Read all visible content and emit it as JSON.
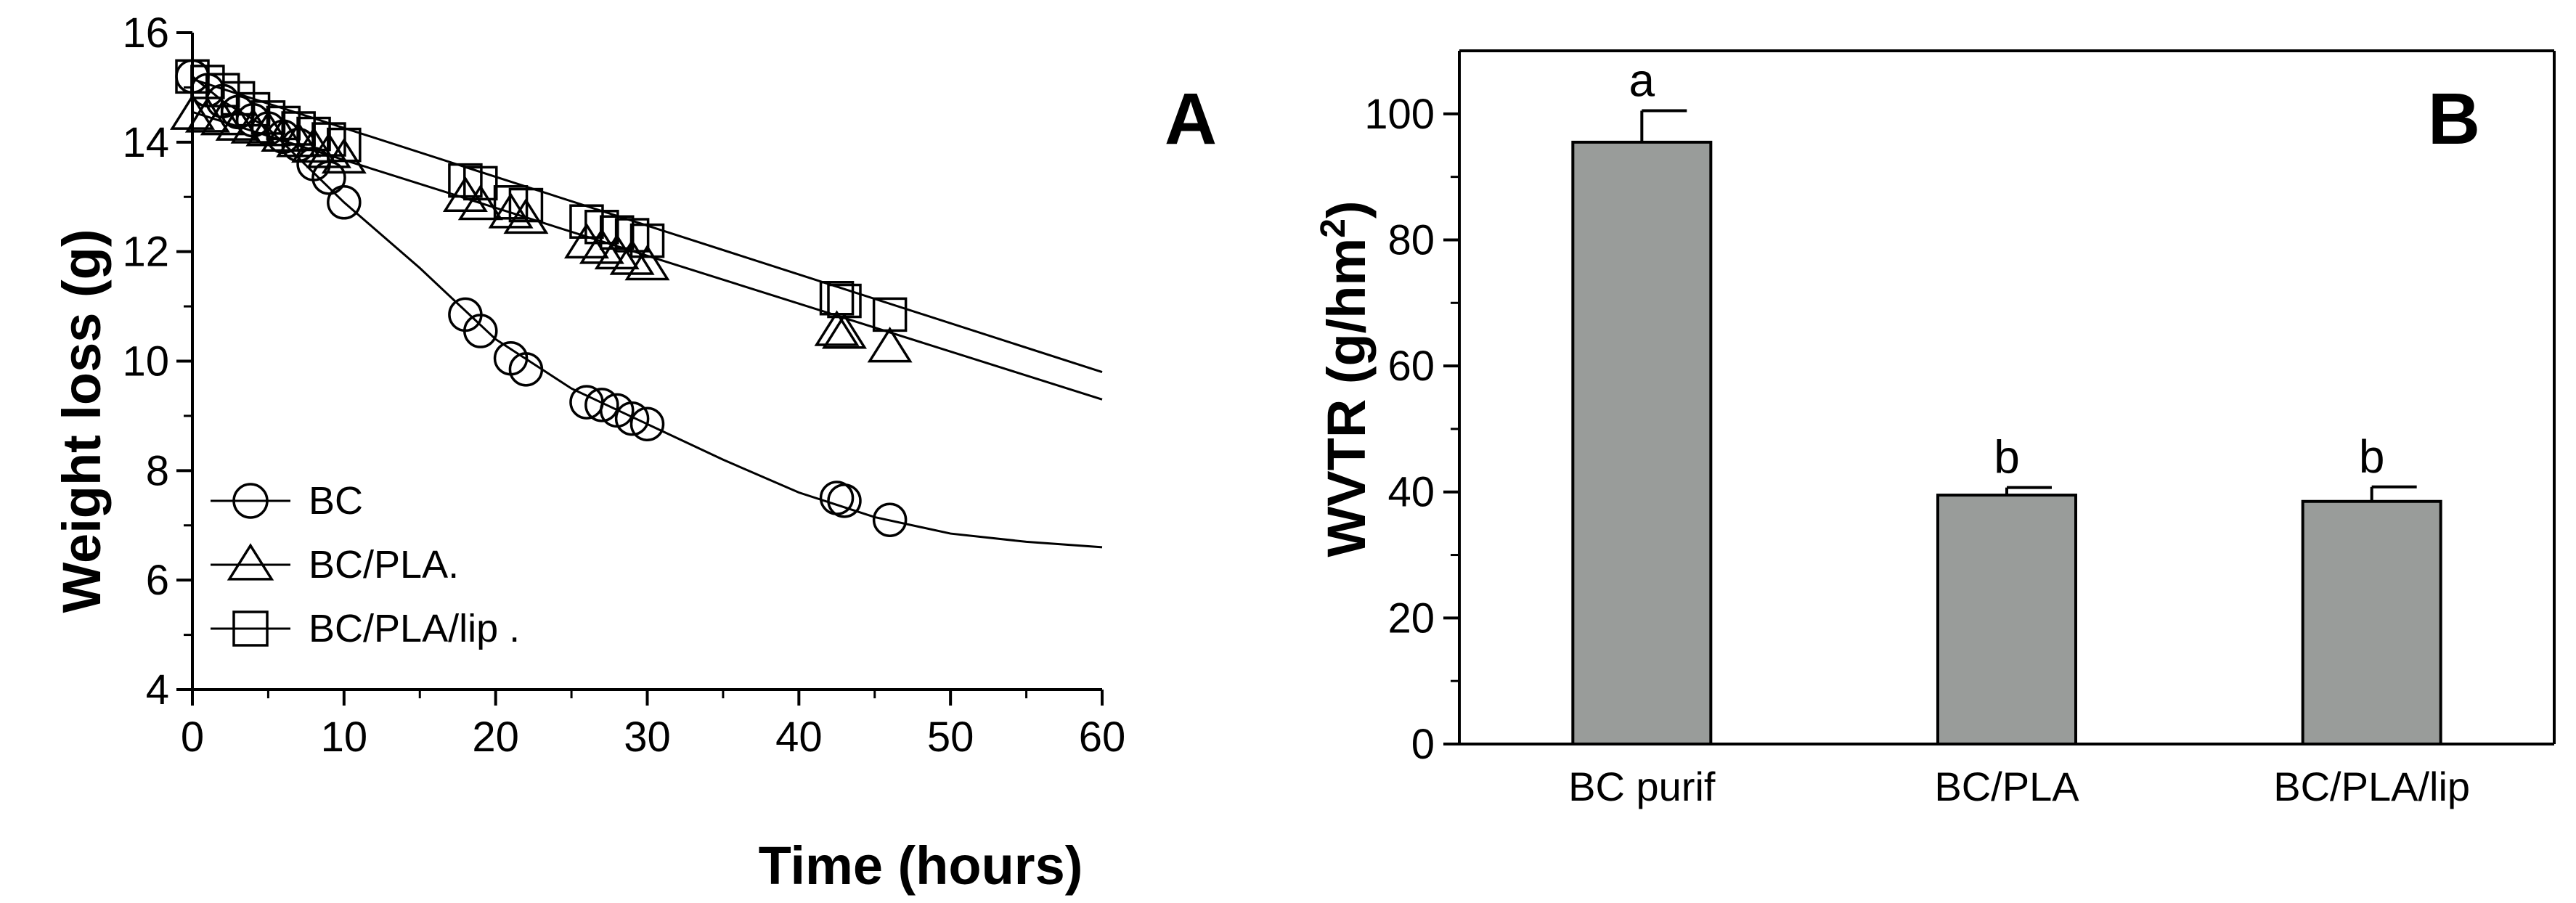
{
  "chart_data": [
    {
      "type": "line",
      "panel_label": "A",
      "xlabel": "Time (hours)",
      "ylabel": "Weight loss (g)",
      "xlim": [
        0,
        60
      ],
      "ylim": [
        4,
        16
      ],
      "xticks": [
        0,
        10,
        20,
        30,
        40,
        50,
        60
      ],
      "yticks": [
        4,
        6,
        8,
        10,
        12,
        14,
        16
      ],
      "legend_position": "bottom-left",
      "series": [
        {
          "name": "BC",
          "marker": "circle",
          "x": [
            0,
            1,
            2,
            3,
            4,
            5,
            6,
            7,
            8,
            9,
            10,
            18,
            19,
            21,
            22,
            26,
            27,
            28,
            29,
            30,
            42.5,
            43,
            46
          ],
          "y": [
            15.2,
            14.95,
            14.75,
            14.55,
            14.4,
            14.25,
            14.1,
            13.95,
            13.6,
            13.35,
            12.9,
            10.85,
            10.55,
            10.05,
            9.85,
            9.25,
            9.2,
            9.1,
            8.95,
            8.85,
            7.5,
            7.45,
            7.1
          ],
          "fit_x": [
            0,
            2,
            5,
            10,
            15,
            20,
            25,
            30,
            35,
            40,
            45,
            50,
            55,
            60
          ],
          "fit_y": [
            15.2,
            14.75,
            14.25,
            12.9,
            11.7,
            10.4,
            9.5,
            8.85,
            8.2,
            7.6,
            7.15,
            6.85,
            6.7,
            6.6
          ]
        },
        {
          "name": "BC/PLA.",
          "marker": "triangle",
          "x": [
            0,
            1,
            2,
            3,
            4,
            5,
            6,
            7,
            8,
            9,
            10,
            18,
            19,
            21,
            22,
            26,
            27,
            28,
            29,
            30,
            42.5,
            43,
            46
          ],
          "y": [
            14.5,
            14.45,
            14.4,
            14.3,
            14.25,
            14.2,
            14.1,
            14.0,
            13.9,
            13.8,
            13.7,
            13.0,
            12.85,
            12.7,
            12.6,
            12.15,
            12.05,
            11.95,
            11.85,
            11.75,
            10.55,
            10.5,
            10.25
          ],
          "fit_x": [
            0,
            60
          ],
          "fit_y": [
            14.55,
            9.3
          ]
        },
        {
          "name": "BC/PLA/lip .",
          "marker": "square",
          "x": [
            0,
            1,
            2,
            3,
            4,
            5,
            6,
            7,
            8,
            9,
            10,
            18,
            19,
            21,
            22,
            26,
            27,
            28,
            29,
            30,
            42.5,
            43,
            46
          ],
          "y": [
            15.2,
            15.1,
            14.95,
            14.8,
            14.6,
            14.45,
            14.35,
            14.25,
            14.15,
            14.05,
            13.95,
            13.3,
            13.25,
            12.9,
            12.85,
            12.55,
            12.45,
            12.35,
            12.3,
            12.2,
            11.15,
            11.1,
            10.85
          ],
          "fit_x": [
            0,
            60
          ],
          "fit_y": [
            15.15,
            9.8
          ]
        }
      ]
    },
    {
      "type": "bar",
      "panel_label": "B",
      "xlabel": "",
      "ylabel": "WVTR (g/hm",
      "ylabel_superscript": "2",
      "ylabel_suffix": ")",
      "ylim": [
        0,
        110
      ],
      "yticks": [
        0,
        20,
        40,
        60,
        80,
        100
      ],
      "categories": [
        "BC purif",
        "BC/PLA",
        "BC/PLA/lip"
      ],
      "values": [
        95.5,
        39.5,
        38.5
      ],
      "errors": [
        5.0,
        1.2,
        2.3
      ],
      "significance": [
        "a",
        "b",
        "b"
      ],
      "bar_color": "#999c9a"
    }
  ]
}
